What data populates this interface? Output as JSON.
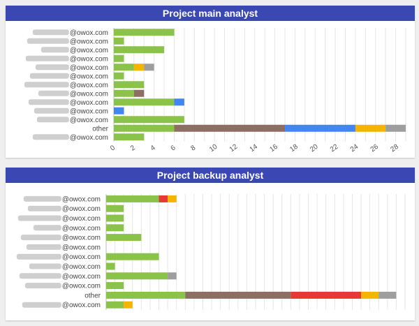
{
  "charts": [
    {
      "title": "Project main analyst",
      "chart_data": {
        "type": "bar",
        "orientation": "horizontal",
        "stacked": true,
        "xlim": [
          0,
          29
        ],
        "x_ticks": [
          0,
          2,
          4,
          6,
          8,
          10,
          12,
          14,
          16,
          18,
          20,
          22,
          24,
          26,
          28
        ],
        "grid": true,
        "categories": [
          "@owox.com",
          "@owox.com",
          "@owox.com",
          "@owox.com",
          "@owox.com",
          "@owox.com",
          "@owox.com",
          "@owox.com",
          "@owox.com",
          "@owox.com",
          "@owox.com",
          "other",
          "@owox.com"
        ],
        "category_masked": [
          true,
          true,
          true,
          true,
          true,
          true,
          true,
          true,
          true,
          true,
          true,
          false,
          true
        ],
        "series": [
          {
            "color": "#8bc34a",
            "values": [
              6,
              1,
              5,
              1,
              2,
              1,
              3,
              2,
              6,
              0,
              7,
              6,
              3
            ]
          },
          {
            "color": "#f4b400",
            "values": [
              0,
              0,
              0,
              0,
              1,
              0,
              0,
              0,
              0,
              0,
              0,
              0,
              0
            ]
          },
          {
            "color": "#8d6e63",
            "values": [
              0,
              0,
              0,
              0,
              0,
              0,
              0,
              1,
              0,
              0,
              0,
              11,
              0
            ]
          },
          {
            "color": "#4285f4",
            "values": [
              0,
              0,
              0,
              0,
              0,
              0,
              0,
              0,
              1,
              1,
              0,
              7,
              0
            ]
          },
          {
            "color": "#f4b400",
            "values": [
              0,
              0,
              0,
              0,
              0,
              0,
              0,
              0,
              0,
              0,
              0,
              3,
              0
            ]
          },
          {
            "color": "#9e9e9e",
            "values": [
              0,
              0,
              0,
              0,
              1,
              0,
              0,
              0,
              0,
              0,
              0,
              2,
              0
            ]
          }
        ]
      }
    },
    {
      "title": "Project backup analyst",
      "chart_data": {
        "type": "bar",
        "orientation": "horizontal",
        "stacked": true,
        "xlim": [
          0,
          34
        ],
        "x_ticks": [],
        "grid": true,
        "categories": [
          "@owox.com",
          "@owox.com",
          "@owox.com",
          "@owox.com",
          "@owox.com",
          "@owox.com",
          "@owox.com",
          "@owox.com",
          "@owox.com",
          "@owox.com",
          "other",
          "@owox.com"
        ],
        "category_masked": [
          true,
          true,
          true,
          true,
          true,
          true,
          true,
          true,
          true,
          true,
          false,
          true
        ],
        "series": [
          {
            "color": "#8bc34a",
            "values": [
              6,
              2,
              2,
              2,
              4,
              0,
              6,
              1,
              7,
              2,
              9,
              2
            ]
          },
          {
            "color": "#8d6e63",
            "values": [
              0,
              0,
              0,
              0,
              0,
              0,
              0,
              0,
              0,
              0,
              12,
              0
            ]
          },
          {
            "color": "#e53935",
            "values": [
              1,
              0,
              0,
              0,
              0,
              0,
              0,
              0,
              0,
              0,
              8,
              0
            ]
          },
          {
            "color": "#f4b400",
            "values": [
              1,
              0,
              0,
              0,
              0,
              0,
              0,
              0,
              0,
              0,
              2,
              1
            ]
          },
          {
            "color": "#9e9e9e",
            "values": [
              0,
              0,
              0,
              0,
              0,
              0,
              0,
              0,
              1,
              0,
              2,
              0
            ]
          }
        ]
      }
    }
  ]
}
